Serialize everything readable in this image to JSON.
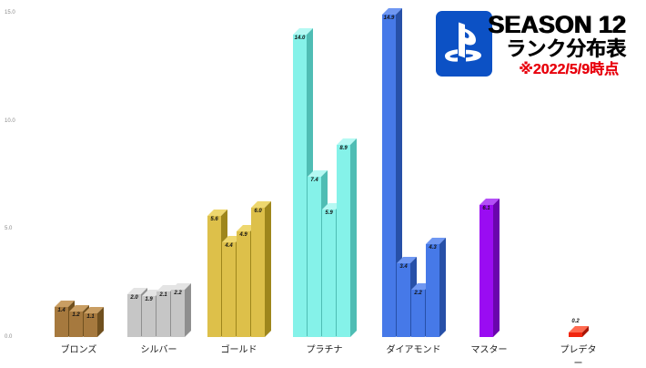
{
  "header": {
    "title": "SEASON 12",
    "subtitle": "ランク分布表",
    "note": "※2022/5/9時点",
    "note_color": "#e8000d",
    "logo_name": "playstation-logo",
    "logo_bg": "#0c51c5"
  },
  "chart_data": {
    "type": "bar",
    "title": "SEASON 12 ランク分布表",
    "subtitle_note": "※2022/5/9時点",
    "xlabel": "",
    "ylabel": "",
    "ylim": [
      0,
      15
    ],
    "ytick_labels": [
      "0.0",
      "5.0",
      "10.0",
      "15.0"
    ],
    "grid": false,
    "legend": null,
    "style": "3d-grouped-bars",
    "groups": [
      {
        "label": "ブロンズ",
        "values": [
          1.4,
          1.2,
          1.1
        ],
        "front": "#a6793e",
        "side": "#70501f",
        "top": "#c99e63"
      },
      {
        "label": "シルバー",
        "values": [
          2.0,
          1.9,
          2.1,
          2.2
        ],
        "front": "#c6c6c6",
        "side": "#8f8f8f",
        "top": "#e4e4e4"
      },
      {
        "label": "ゴールド",
        "values": [
          5.6,
          4.4,
          4.9,
          6.0
        ],
        "front": "#ddc04a",
        "side": "#9e861c",
        "top": "#eed76e"
      },
      {
        "label": "プラチナ",
        "values": [
          14.0,
          7.4,
          5.9,
          8.9
        ],
        "front": "#85f2e9",
        "side": "#4fbdb4",
        "top": "#b5f9f3"
      },
      {
        "label": "ダイアモンド",
        "values": [
          14.9,
          3.4,
          2.2,
          4.3
        ],
        "front": "#4679e8",
        "side": "#2750a8",
        "top": "#6f97f2"
      },
      {
        "label": "マスター",
        "values": [
          6.1
        ],
        "front": "#9a0cf2",
        "side": "#6a05ad",
        "top": "#b44ff7"
      },
      {
        "label": "プレデター",
        "values": [
          0.2
        ],
        "front": "#f1250e",
        "side": "#a81505",
        "top": "#ff6a50"
      }
    ]
  }
}
